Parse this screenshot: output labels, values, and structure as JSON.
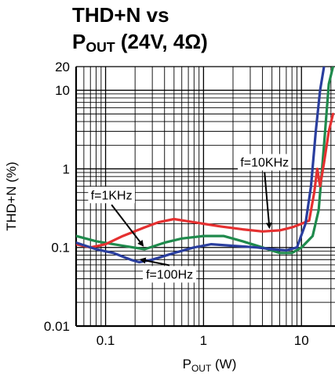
{
  "chart_data": {
    "type": "line",
    "title_parts": [
      {
        "text": "THD+N vs"
      },
      {
        "text": "P",
        "sub": "OUT",
        "rest": " (24V, 4Ω)"
      }
    ],
    "xlabel": {
      "main": "P",
      "sub": "OUT",
      "rest": " (W)"
    },
    "ylabel": "THD+N (%)",
    "xscale": "log",
    "yscale": "log",
    "xlim": [
      0.05,
      22
    ],
    "ylim": [
      0.01,
      20
    ],
    "xticks": [
      {
        "v": 0.1,
        "label": "0.1"
      },
      {
        "v": 1,
        "label": "1"
      },
      {
        "v": 10,
        "label": "10"
      }
    ],
    "yticks": [
      {
        "v": 20,
        "label": "20"
      },
      {
        "v": 10,
        "label": "10"
      },
      {
        "v": 1,
        "label": "1"
      },
      {
        "v": 0.1,
        "label": "0.1"
      },
      {
        "v": 0.01,
        "label": "0.01"
      }
    ],
    "grid": true,
    "series": [
      {
        "name": "f=1KHz",
        "color": "#1f8a4c",
        "points": [
          [
            0.05,
            0.14
          ],
          [
            0.08,
            0.12
          ],
          [
            0.15,
            0.105
          ],
          [
            0.25,
            0.095
          ],
          [
            0.4,
            0.115
          ],
          [
            0.6,
            0.13
          ],
          [
            1,
            0.14
          ],
          [
            1.6,
            0.14
          ],
          [
            2.5,
            0.12
          ],
          [
            4,
            0.1
          ],
          [
            6,
            0.085
          ],
          [
            8,
            0.085
          ],
          [
            10,
            0.1
          ],
          [
            13,
            0.14
          ],
          [
            15,
            0.3
          ],
          [
            17,
            2
          ],
          [
            19,
            12
          ],
          [
            21,
            20
          ]
        ]
      },
      {
        "name": "f=10KHz",
        "color": "#e53030",
        "points": [
          [
            0.05,
            0.11
          ],
          [
            0.07,
            0.1
          ],
          [
            0.1,
            0.11
          ],
          [
            0.15,
            0.14
          ],
          [
            0.25,
            0.18
          ],
          [
            0.35,
            0.21
          ],
          [
            0.5,
            0.23
          ],
          [
            0.7,
            0.215
          ],
          [
            1,
            0.2
          ],
          [
            1.5,
            0.185
          ],
          [
            2.5,
            0.17
          ],
          [
            4,
            0.16
          ],
          [
            6,
            0.165
          ],
          [
            8,
            0.18
          ],
          [
            10,
            0.2
          ],
          [
            12,
            0.22
          ],
          [
            13.5,
            0.5
          ],
          [
            14.5,
            1
          ],
          [
            15.5,
            0.6
          ],
          [
            17,
            1.2
          ],
          [
            19,
            3
          ],
          [
            21,
            5
          ]
        ]
      },
      {
        "name": "f=100Hz",
        "color": "#2a3e9e",
        "points": [
          [
            0.05,
            0.115
          ],
          [
            0.08,
            0.095
          ],
          [
            0.12,
            0.085
          ],
          [
            0.18,
            0.07
          ],
          [
            0.22,
            0.065
          ],
          [
            0.3,
            0.07
          ],
          [
            0.5,
            0.085
          ],
          [
            0.8,
            0.1
          ],
          [
            1.2,
            0.11
          ],
          [
            2,
            0.105
          ],
          [
            3.5,
            0.1
          ],
          [
            5,
            0.095
          ],
          [
            7,
            0.092
          ],
          [
            9,
            0.1
          ],
          [
            11,
            0.2
          ],
          [
            12.5,
            0.6
          ],
          [
            14,
            3
          ],
          [
            15.5,
            10
          ],
          [
            17,
            20
          ]
        ]
      }
    ],
    "annotations": [
      {
        "text": "f=10KHz",
        "x": 4.2,
        "y": 1.2,
        "arrow_to": [
          4.7,
          0.18
        ]
      },
      {
        "text": "f=1KHz",
        "x": 0.115,
        "y": 0.46,
        "arrow_to": [
          0.24,
          0.106
        ]
      },
      {
        "text": "f=100Hz",
        "x": 0.45,
        "y": 0.045,
        "arrow_to": [
          0.23,
          0.07
        ]
      }
    ]
  }
}
